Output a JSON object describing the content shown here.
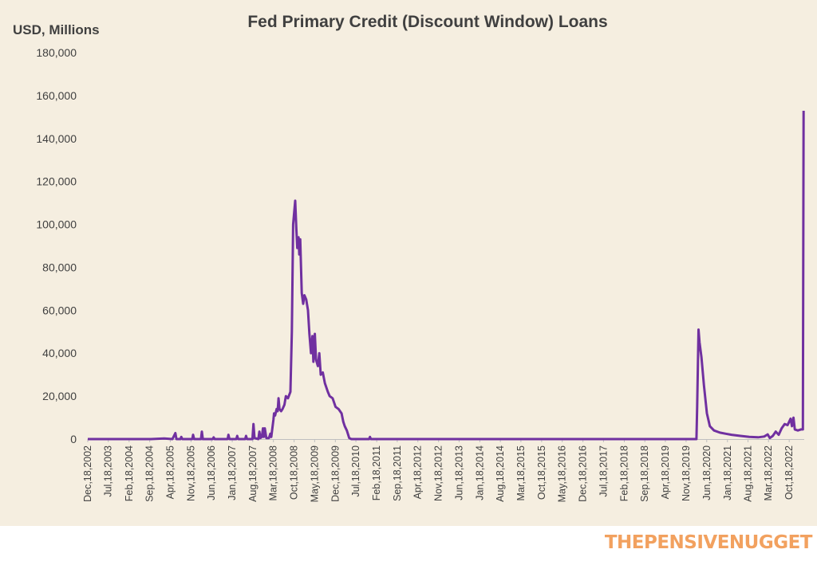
{
  "chart_data": {
    "type": "line",
    "title": "Fed Primary Credit (Discount Window) Loans",
    "ylabel": "USD, Millions",
    "xlabel": "",
    "ylim": [
      0,
      180000
    ],
    "y_ticks": [
      "0",
      "20,000",
      "40,000",
      "60,000",
      "80,000",
      "100,000",
      "120,000",
      "140,000",
      "160,000",
      "180,000"
    ],
    "x_tick_labels": [
      "Dec,18,2002",
      "Jul,18,2003",
      "Feb,18,2004",
      "Sep,18,2004",
      "Apr,18,2005",
      "Nov,18,2005",
      "Jun,18,2006",
      "Jan,18,2007",
      "Aug,18,2007",
      "Mar,18,2008",
      "Oct,18,2008",
      "May,18,2009",
      "Dec,18,2009",
      "Jul,18,2010",
      "Feb,18,2011",
      "Sep,18,2011",
      "Apr,18,2012",
      "Nov,18,2012",
      "Jun,18,2013",
      "Jan,18,2014",
      "Aug,18,2014",
      "Mar,18,2015",
      "Oct,18,2015",
      "May,18,2016",
      "Dec,18,2016",
      "Jul,18,2017",
      "Feb,18,2018",
      "Sep,18,2018",
      "Apr,18,2019",
      "Nov,18,2019",
      "Jun,18,2020",
      "Jan,18,2021",
      "Aug,18,2021",
      "Mar,18,2022",
      "Oct,18,2022"
    ],
    "x_range": [
      "2002-12-18",
      "2023-03-22"
    ],
    "grid": false,
    "legend": "none",
    "series": [
      {
        "color": "#7030a0",
        "points": [
          [
            "2002-12-18",
            0
          ],
          [
            "2004-10-01",
            0
          ],
          [
            "2005-02-15",
            300
          ],
          [
            "2005-05-10",
            0
          ],
          [
            "2005-06-10",
            2800
          ],
          [
            "2005-06-20",
            0
          ],
          [
            "2005-08-01",
            0
          ],
          [
            "2005-08-10",
            1000
          ],
          [
            "2005-08-20",
            0
          ],
          [
            "2005-12-01",
            0
          ],
          [
            "2005-12-10",
            2000
          ],
          [
            "2005-12-20",
            0
          ],
          [
            "2006-03-01",
            0
          ],
          [
            "2006-03-10",
            3500
          ],
          [
            "2006-03-20",
            0
          ],
          [
            "2006-07-01",
            0
          ],
          [
            "2006-07-10",
            800
          ],
          [
            "2006-07-20",
            0
          ],
          [
            "2006-12-01",
            0
          ],
          [
            "2006-12-10",
            2000
          ],
          [
            "2006-12-20",
            0
          ],
          [
            "2007-03-01",
            0
          ],
          [
            "2007-03-10",
            1500
          ],
          [
            "2007-03-20",
            0
          ],
          [
            "2007-06-01",
            0
          ],
          [
            "2007-06-10",
            1500
          ],
          [
            "2007-06-20",
            0
          ],
          [
            "2007-08-15",
            0
          ],
          [
            "2007-08-25",
            7000
          ],
          [
            "2007-09-05",
            500
          ],
          [
            "2007-10-15",
            0
          ],
          [
            "2007-10-25",
            3500
          ],
          [
            "2007-11-05",
            500
          ],
          [
            "2007-11-20",
            1000
          ],
          [
            "2007-12-01",
            5000
          ],
          [
            "2007-12-10",
            1000
          ],
          [
            "2007-12-20",
            5000
          ],
          [
            "2008-01-05",
            500
          ],
          [
            "2008-02-01",
            500
          ],
          [
            "2008-02-15",
            2500
          ],
          [
            "2008-02-25",
            1000
          ],
          [
            "2008-03-18",
            9000
          ],
          [
            "2008-03-25",
            12000
          ],
          [
            "2008-04-05",
            11000
          ],
          [
            "2008-04-20",
            14000
          ],
          [
            "2008-05-01",
            13000
          ],
          [
            "2008-05-10",
            19000
          ],
          [
            "2008-05-20",
            14000
          ],
          [
            "2008-06-05",
            13000
          ],
          [
            "2008-06-20",
            14000
          ],
          [
            "2008-07-10",
            16000
          ],
          [
            "2008-07-25",
            20000
          ],
          [
            "2008-08-15",
            19000
          ],
          [
            "2008-09-10",
            22000
          ],
          [
            "2008-09-25",
            50000
          ],
          [
            "2008-10-08",
            100000
          ],
          [
            "2008-10-29",
            111000
          ],
          [
            "2008-11-10",
            98000
          ],
          [
            "2008-11-20",
            89000
          ],
          [
            "2008-12-03",
            94000
          ],
          [
            "2008-12-10",
            86000
          ],
          [
            "2008-12-20",
            93000
          ],
          [
            "2009-01-05",
            68000
          ],
          [
            "2009-01-20",
            63000
          ],
          [
            "2009-02-01",
            67000
          ],
          [
            "2009-02-20",
            65000
          ],
          [
            "2009-03-10",
            60000
          ],
          [
            "2009-03-25",
            49000
          ],
          [
            "2009-04-10",
            40000
          ],
          [
            "2009-04-25",
            48000
          ],
          [
            "2009-05-05",
            36000
          ],
          [
            "2009-05-20",
            49000
          ],
          [
            "2009-06-01",
            37000
          ],
          [
            "2009-06-20",
            34000
          ],
          [
            "2009-07-05",
            40000
          ],
          [
            "2009-07-20",
            30000
          ],
          [
            "2009-08-10",
            31000
          ],
          [
            "2009-09-01",
            26000
          ],
          [
            "2009-10-01",
            22000
          ],
          [
            "2009-10-20",
            20000
          ],
          [
            "2009-11-20",
            19000
          ],
          [
            "2009-12-20",
            15000
          ],
          [
            "2010-01-20",
            14000
          ],
          [
            "2010-02-20",
            12000
          ],
          [
            "2010-03-10",
            8000
          ],
          [
            "2010-03-25",
            6000
          ],
          [
            "2010-04-15",
            4000
          ],
          [
            "2010-05-10",
            500
          ],
          [
            "2010-06-01",
            0
          ],
          [
            "2010-12-01",
            0
          ],
          [
            "2010-12-10",
            1000
          ],
          [
            "2010-12-20",
            0
          ],
          [
            "2020-03-04",
            0
          ],
          [
            "2020-03-11",
            15000
          ],
          [
            "2020-03-25",
            51000
          ],
          [
            "2020-04-05",
            45000
          ],
          [
            "2020-04-25",
            38000
          ],
          [
            "2020-05-20",
            25000
          ],
          [
            "2020-06-20",
            12000
          ],
          [
            "2020-07-20",
            6000
          ],
          [
            "2020-09-01",
            4000
          ],
          [
            "2020-11-01",
            3000
          ],
          [
            "2021-01-01",
            2500
          ],
          [
            "2021-03-01",
            2000
          ],
          [
            "2021-06-01",
            1500
          ],
          [
            "2021-09-01",
            1000
          ],
          [
            "2021-12-01",
            800
          ],
          [
            "2022-02-01",
            1200
          ],
          [
            "2022-03-10",
            2200
          ],
          [
            "2022-04-01",
            500
          ],
          [
            "2022-05-01",
            1500
          ],
          [
            "2022-06-01",
            3500
          ],
          [
            "2022-07-01",
            2000
          ],
          [
            "2022-08-01",
            5000
          ],
          [
            "2022-09-01",
            7000
          ],
          [
            "2022-10-01",
            6500
          ],
          [
            "2022-11-01",
            9500
          ],
          [
            "2022-11-15",
            6000
          ],
          [
            "2022-12-01",
            10000
          ],
          [
            "2022-12-15",
            4500
          ],
          [
            "2023-01-15",
            4000
          ],
          [
            "2023-02-15",
            4500
          ],
          [
            "2023-03-08",
            4500
          ],
          [
            "2023-03-15",
            152900
          ]
        ]
      }
    ]
  },
  "watermark": "THEPENSIVENUGGET"
}
